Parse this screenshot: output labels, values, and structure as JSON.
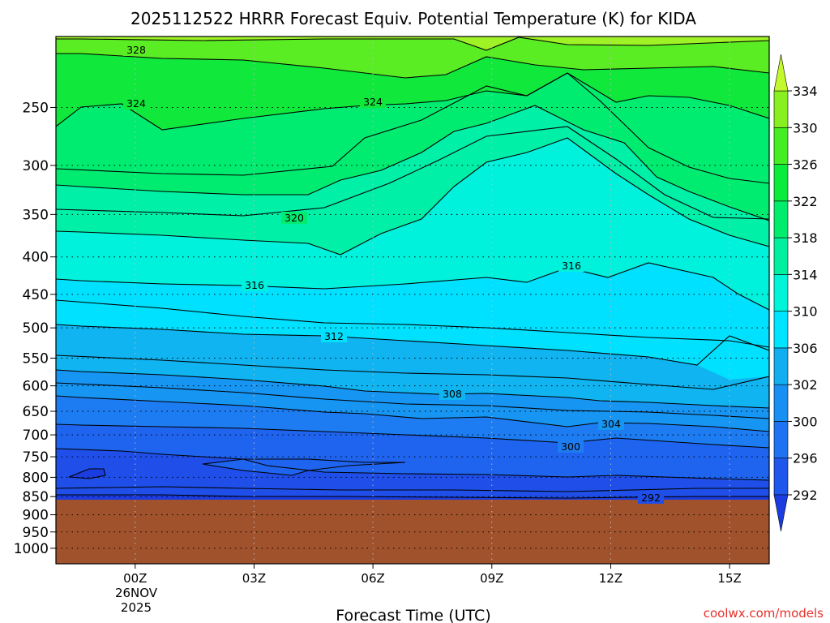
{
  "chart_data": {
    "type": "contour",
    "title": "2025112522 HRRR Forecast Equiv. Potential Temperature (K) for KIDA",
    "xlabel": "Forecast Time (UTC)",
    "ylabel": "",
    "x_ticks": [
      "00Z",
      "03Z",
      "06Z",
      "09Z",
      "12Z",
      "15Z"
    ],
    "x_tick_hours": [
      0,
      3,
      6,
      9,
      12,
      15
    ],
    "date_label": [
      "26NOV",
      "2025"
    ],
    "xlim_hours": [
      -2,
      16
    ],
    "y_ticks": [
      "250",
      "300",
      "350",
      "400",
      "450",
      "500",
      "550",
      "600",
      "650",
      "700",
      "750",
      "800",
      "850",
      "900",
      "950",
      "1000"
    ],
    "y_tick_values": [
      250,
      300,
      350,
      400,
      450,
      500,
      550,
      600,
      650,
      700,
      750,
      800,
      850,
      900,
      950,
      1000
    ],
    "ylim_hPa": [
      200,
      1050
    ],
    "y_scale": "log-pressure",
    "ground_level_hPa": 860,
    "colorbar": {
      "levels": [
        292,
        296,
        300,
        302,
        306,
        310,
        314,
        318,
        322,
        326,
        330,
        334
      ],
      "labels": [
        "292",
        "296",
        "300",
        "302",
        "306",
        "310",
        "314",
        "318",
        "322",
        "326",
        "330",
        "334"
      ],
      "colors": [
        "#1a3ce0",
        "#1f57ec",
        "#1f72f2",
        "#1890f3",
        "#13aef0",
        "#00e5ff",
        "#00f5d8",
        "#00f0a0",
        "#00ec6c",
        "#0aec3c",
        "#44ee22",
        "#88f020",
        "#c2f82c"
      ]
    },
    "contour_labels": [
      "328",
      "324",
      "324",
      "320",
      "316",
      "316",
      "312",
      "308",
      "304",
      "300",
      "292"
    ],
    "credit": "coolwx.com/models"
  }
}
